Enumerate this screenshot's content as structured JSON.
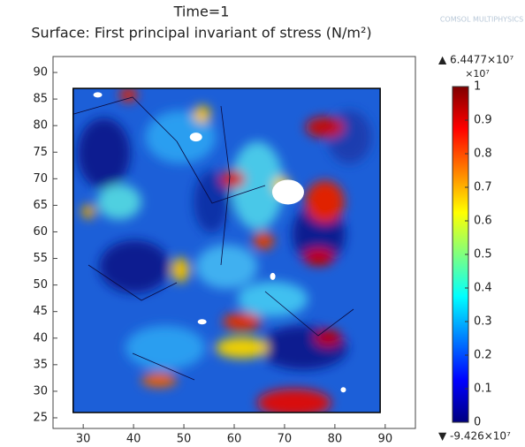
{
  "chart_data": {
    "type": "surface",
    "title": "Time=1",
    "subtitle": "Surface: First principal invariant of stress (N/m²)",
    "logo": "COMSOL MULTIPHYSICS",
    "xlim": [
      24,
      96
    ],
    "xticks": [
      30,
      40,
      50,
      60,
      70,
      80,
      90
    ],
    "ylim": [
      23,
      93
    ],
    "yticks": [
      25,
      30,
      35,
      40,
      45,
      50,
      55,
      60,
      65,
      70,
      75,
      80,
      85,
      90
    ],
    "domain_x": [
      28,
      89
    ],
    "domain_y": [
      26,
      87
    ],
    "colorbar": {
      "clim": [
        0,
        1
      ],
      "ticks": [
        0,
        0.1,
        0.2,
        0.3,
        0.4,
        0.5,
        0.6,
        0.7,
        0.8,
        0.9,
        1
      ],
      "colors": [
        "#00007f",
        "#0000ff",
        "#007fff",
        "#00ffff",
        "#7fff7f",
        "#ffff00",
        "#ff7f00",
        "#ff0000",
        "#7f0000"
      ],
      "multiplier": "×10⁷",
      "max_label": "▲ 6.4477×10⁷",
      "min_label": "▼ -9.426×10⁷"
    }
  }
}
